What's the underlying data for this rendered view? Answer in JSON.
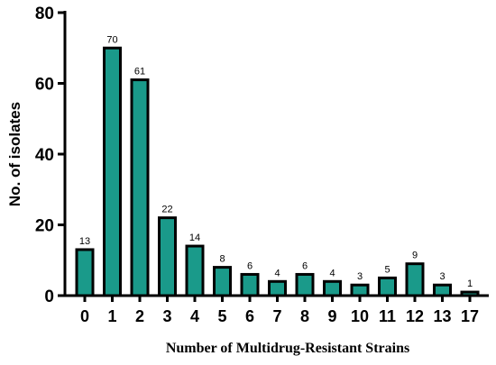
{
  "chart_data": {
    "type": "bar",
    "categories": [
      "0",
      "1",
      "2",
      "3",
      "4",
      "5",
      "6",
      "7",
      "8",
      "9",
      "10",
      "11",
      "12",
      "13",
      "17"
    ],
    "values": [
      13,
      70,
      61,
      22,
      14,
      8,
      6,
      4,
      6,
      4,
      3,
      5,
      9,
      3,
      1
    ],
    "data_labels": [
      "13",
      "70",
      "61",
      "22",
      "14",
      "8",
      "6",
      "4",
      "6",
      "4",
      "3",
      "5",
      "9",
      "3",
      "1"
    ],
    "title": "",
    "xlabel": "Number of Multidrug-Resistant Strains",
    "ylabel": "No. of isolates",
    "ylim": [
      0,
      80
    ],
    "yticks": [
      "0",
      "20",
      "40",
      "60",
      "80"
    ],
    "grid": false,
    "bar_color": "#1a9a8a",
    "bar_edge_color": "#000000"
  }
}
